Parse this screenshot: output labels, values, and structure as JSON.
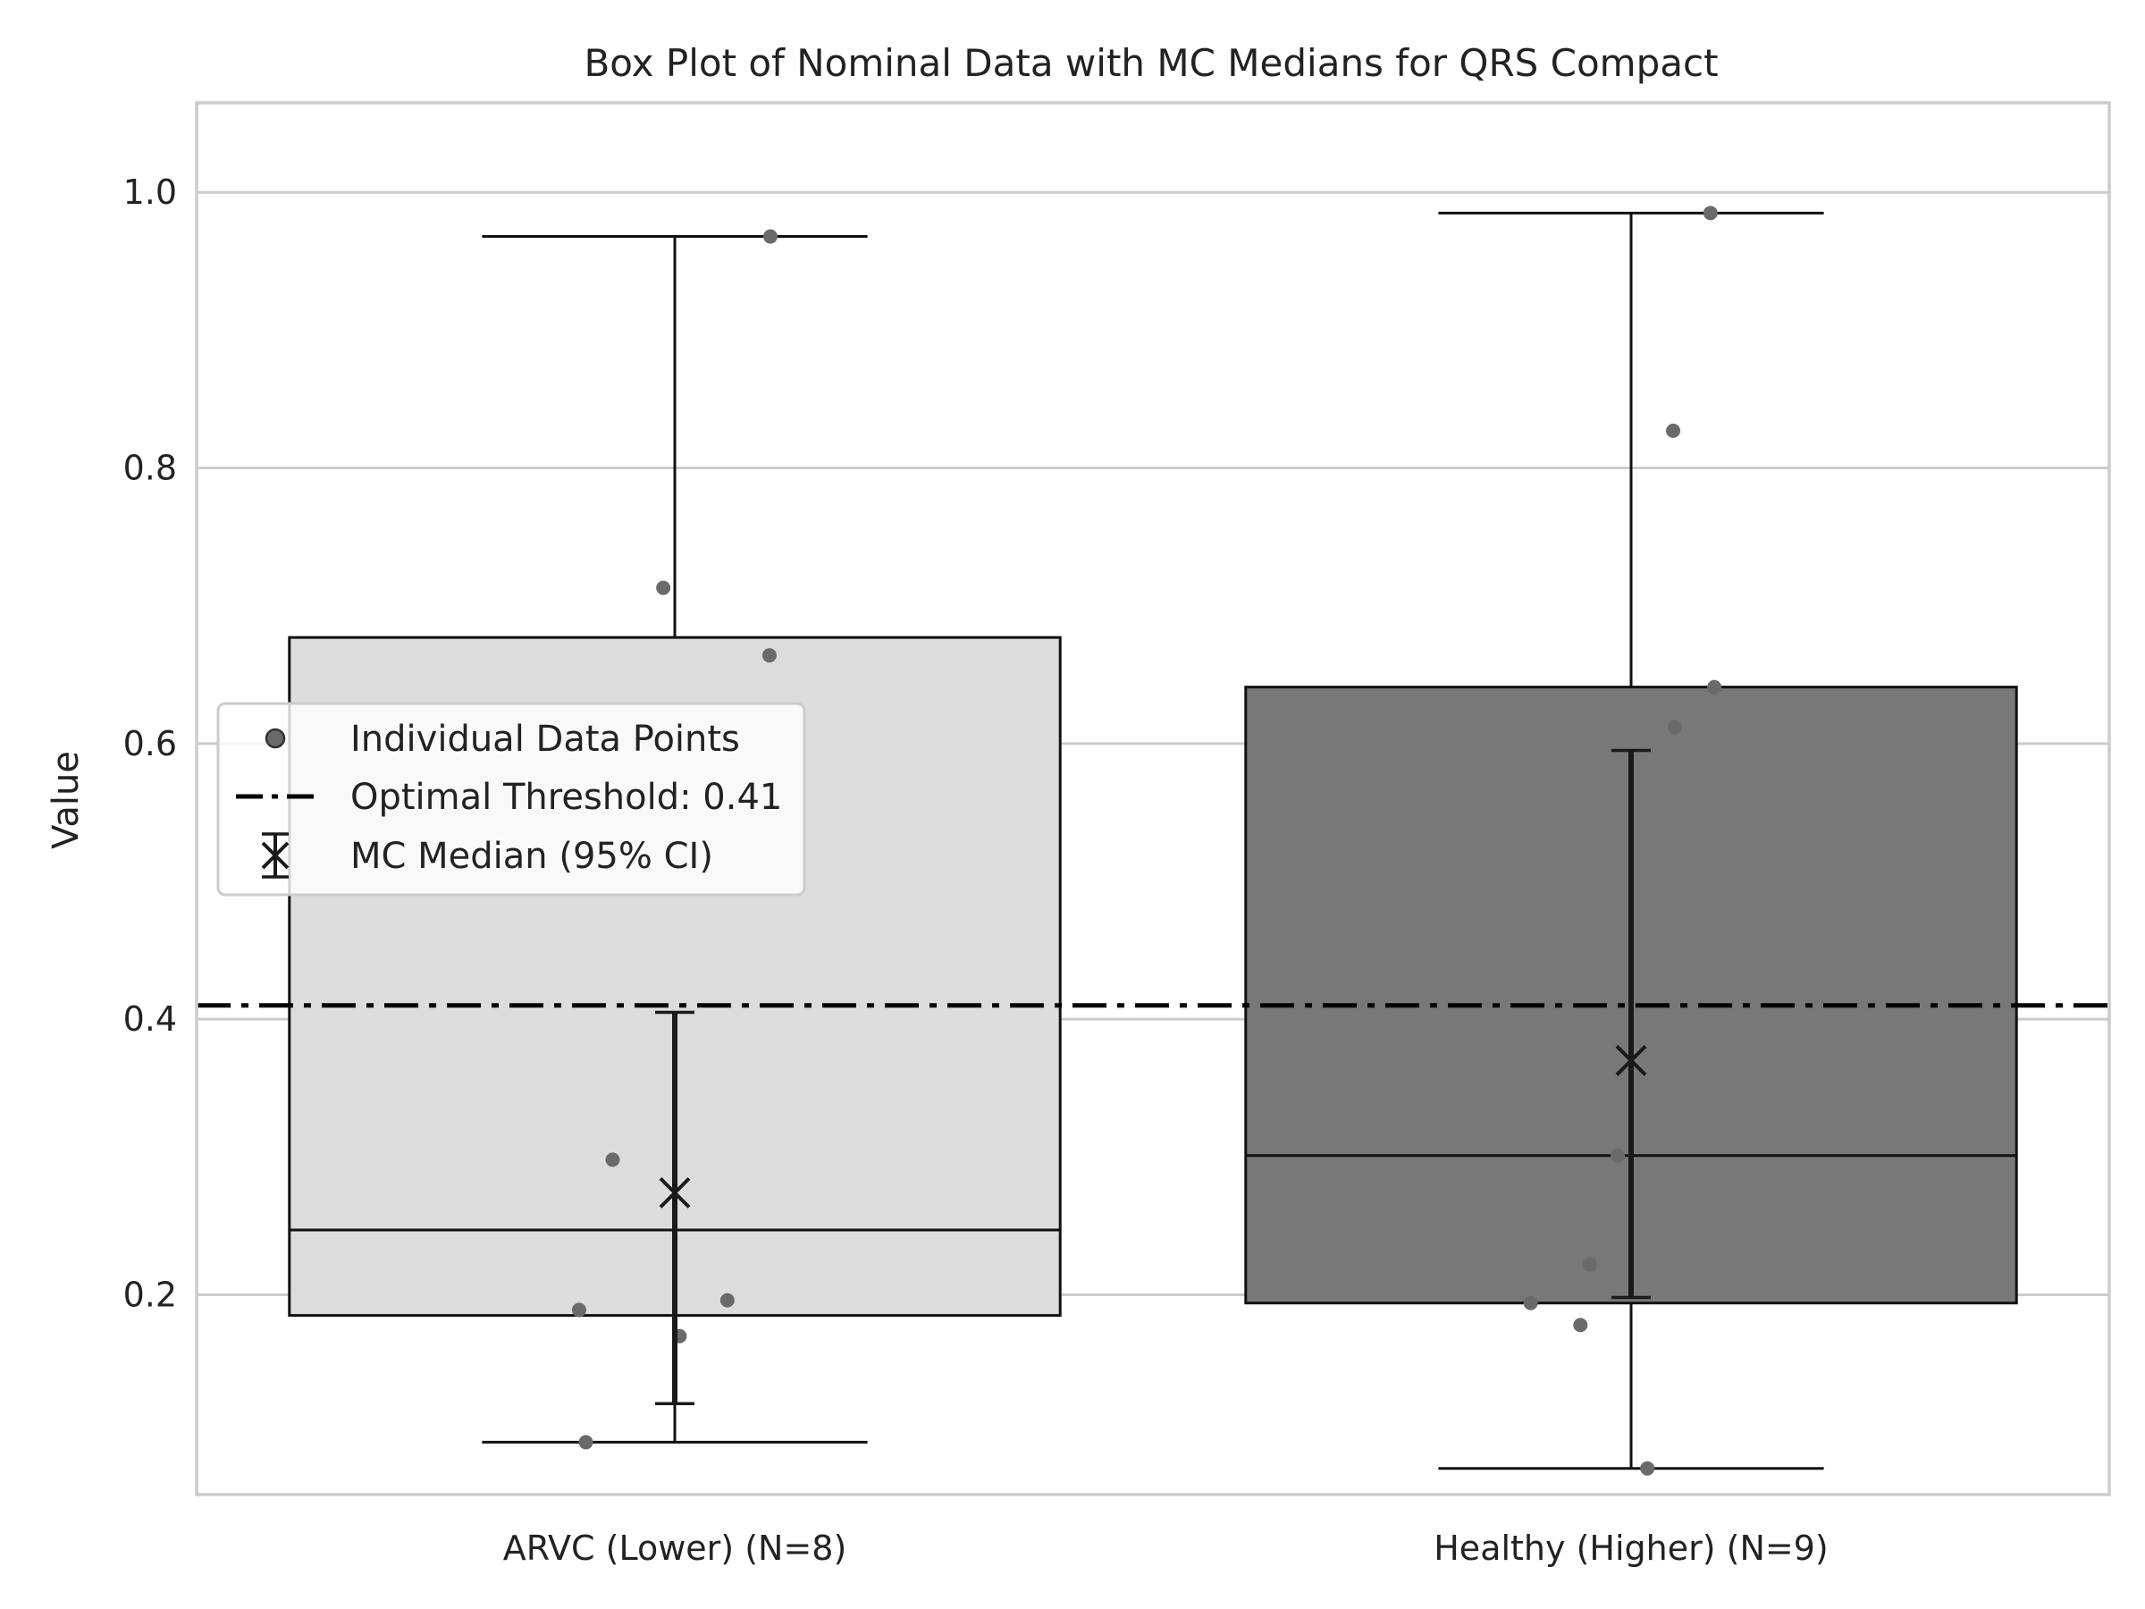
{
  "chart_data": {
    "type": "box",
    "title": "Box Plot of Nominal Data with MC Medians for QRS Compact",
    "xlabel": "",
    "ylabel": "Value",
    "ylim": [
      0.055,
      1.065
    ],
    "yticks": [
      "0.2",
      "0.4",
      "0.6",
      "0.8",
      "1.0"
    ],
    "grid": "horizontal",
    "legend_position": "center-left",
    "categories": [
      "ARVC (Lower) (N=8)",
      "Healthy (Higher) (N=9)"
    ],
    "boxes": [
      {
        "category": "ARVC (Lower) (N=8)",
        "fill": "#dcdcdc",
        "whisker_low": 0.093,
        "q1": 0.185,
        "median": 0.247,
        "q3": 0.677,
        "whisker_high": 0.968,
        "points": [
          {
            "offset": 0.1,
            "value": 0.968
          },
          {
            "offset": -0.012,
            "value": 0.713
          },
          {
            "offset": 0.099,
            "value": 0.664
          },
          {
            "offset": -0.065,
            "value": 0.298
          },
          {
            "offset": 0.055,
            "value": 0.196
          },
          {
            "offset": -0.1,
            "value": 0.189
          },
          {
            "offset": 0.005,
            "value": 0.17
          },
          {
            "offset": -0.093,
            "value": 0.093
          }
        ],
        "mc_median": 0.274,
        "ci_low": 0.121,
        "ci_high": 0.405
      },
      {
        "category": "Healthy (Higher) (N=9)",
        "fill": "#787878",
        "whisker_low": 0.074,
        "q1": 0.194,
        "median": 0.301,
        "q3": 0.641,
        "whisker_high": 0.985,
        "points": [
          {
            "offset": 0.083,
            "value": 0.985
          },
          {
            "offset": 0.044,
            "value": 0.827
          },
          {
            "offset": 0.087,
            "value": 0.641
          },
          {
            "offset": 0.046,
            "value": 0.612
          },
          {
            "offset": -0.014,
            "value": 0.301
          },
          {
            "offset": -0.043,
            "value": 0.222
          },
          {
            "offset": -0.105,
            "value": 0.194
          },
          {
            "offset": -0.053,
            "value": 0.178
          },
          {
            "offset": 0.017,
            "value": 0.074
          }
        ],
        "mc_median": 0.37,
        "ci_low": 0.198,
        "ci_high": 0.595
      }
    ],
    "threshold": 0.41,
    "legend": [
      {
        "label": "Individual Data Points",
        "marker": "point"
      },
      {
        "label": "Optimal Threshold: 0.41",
        "marker": "dashdot"
      },
      {
        "label": "MC Median (95% CI)",
        "marker": "x-errorbar"
      }
    ],
    "colors": {
      "point": "#6a6a6a",
      "line": "#111111",
      "grid": "#cccccc",
      "frame": "#cccccc"
    }
  }
}
